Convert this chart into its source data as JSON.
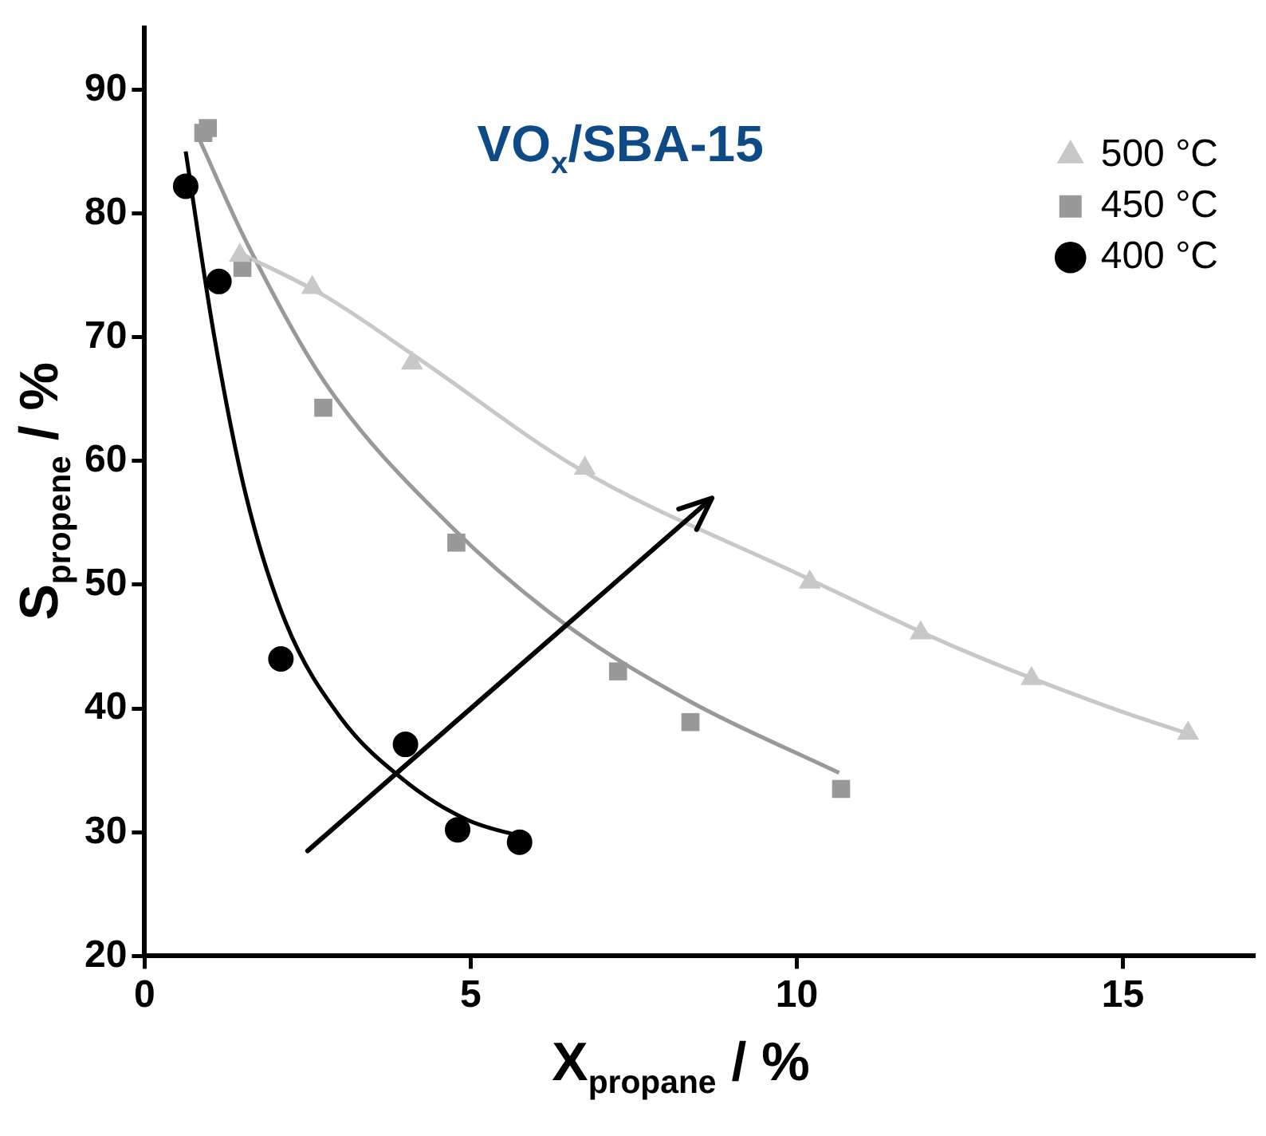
{
  "chart_data": {
    "type": "scatter",
    "title": "VO$_{x}$/SBA-15",
    "xlabel": "X$_{propane}$ / %",
    "ylabel": "S$_{propene}$ / %",
    "xlim": [
      0,
      17
    ],
    "ylim": [
      20,
      95
    ],
    "xticks": [
      0,
      5,
      10,
      15
    ],
    "yticks": [
      20,
      30,
      40,
      50,
      60,
      70,
      80,
      90
    ],
    "grid": false,
    "legend": "top right",
    "series": [
      {
        "name": "500 °C",
        "color": "#c8c8c8",
        "marker": "triangle",
        "x": [
          1.46,
          2.57,
          4.1,
          6.75,
          10.2,
          11.9,
          13.6,
          16.0
        ],
        "values": [
          76.6,
          74.0,
          67.9,
          59.4,
          50.2,
          46.1,
          42.4,
          38.0
        ]
      },
      {
        "name": "450 °C",
        "color": "#999999",
        "marker": "square",
        "x": [
          0.9,
          0.97,
          1.5,
          2.74,
          4.78,
          7.26,
          8.37,
          10.68
        ],
        "values": [
          86.5,
          86.9,
          75.6,
          64.3,
          53.4,
          43.0,
          38.9,
          33.5
        ]
      },
      {
        "name": "400 °C",
        "color": "#000000",
        "marker": "circle",
        "x": [
          0.63,
          1.14,
          2.09,
          4.0,
          4.8,
          5.75
        ],
        "values": [
          82.2,
          74.5,
          44.0,
          37.1,
          30.2,
          29.2
        ]
      },
      {
        "type": "line",
        "color": "#c8c8c8",
        "marker": "none",
        "line_style": "solid",
        "x": [
          1.46,
          2.77,
          4.22,
          6.65,
          10.05,
          12.5,
          14.9,
          16.1
        ],
        "values": [
          76.8,
          73.3,
          68.2,
          59.4,
          50.8,
          44.8,
          39.9,
          37.8
        ]
      },
      {
        "type": "line",
        "color": "#999999",
        "marker": "none",
        "line_style": "solid",
        "x": [
          0.83,
          1.55,
          2.77,
          4.7,
          6.4,
          8.35,
          10.65
        ],
        "values": [
          86.1,
          77.8,
          66.3,
          54.7,
          47.0,
          40.6,
          34.8
        ]
      },
      {
        "type": "line",
        "color": "#000000",
        "marker": "none",
        "line_style": "solid",
        "x": [
          0.63,
          1.07,
          1.55,
          2.16,
          3.0,
          3.98,
          4.95,
          5.9
        ],
        "values": [
          85,
          70,
          57.3,
          47,
          39.3,
          34.2,
          31,
          29.5
        ]
      }
    ]
  }
}
